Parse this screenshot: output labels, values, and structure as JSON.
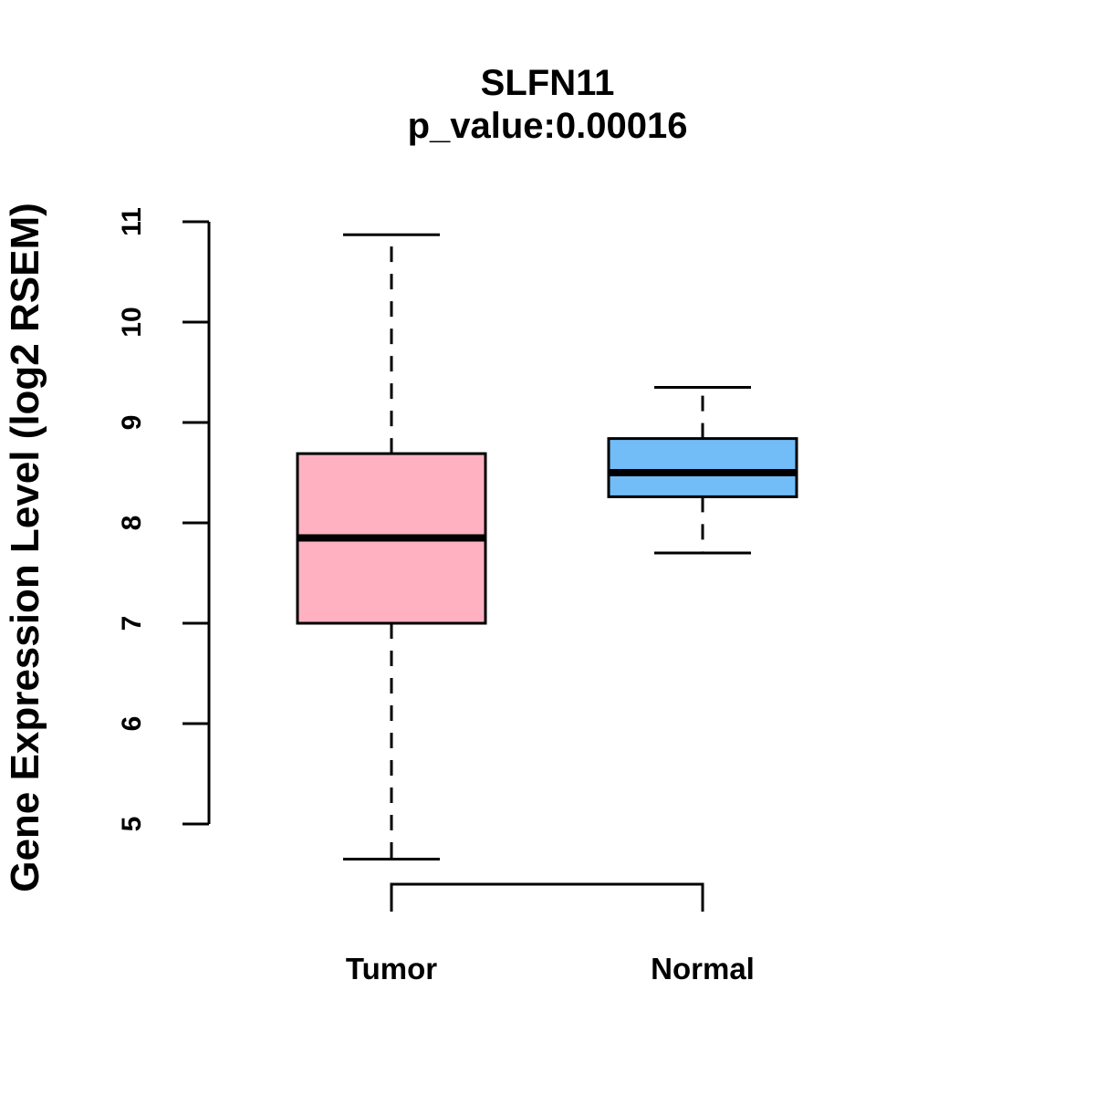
{
  "title": "SLFN11",
  "subtitle": "p_value:0.00016",
  "chart_data": {
    "type": "boxplot",
    "title": "SLFN11",
    "subtitle": "p_value:0.00016",
    "p_value": 0.00016,
    "ylabel": "Gene Expression Level (log2 RSEM)",
    "xlabel": "",
    "ylim": [
      5,
      11
    ],
    "yticks": [
      5,
      6,
      7,
      8,
      9,
      10,
      11
    ],
    "grid": false,
    "legend": "none",
    "categories": [
      "Tumor",
      "Normal"
    ],
    "series": [
      {
        "name": "Tumor",
        "color": "#FFB1C1",
        "lower_whisker": 4.65,
        "q1": 7.0,
        "median": 7.85,
        "q3": 8.69,
        "upper_whisker": 10.87
      },
      {
        "name": "Normal",
        "color": "#72BDF7",
        "lower_whisker": 7.7,
        "q1": 8.26,
        "median": 8.5,
        "q3": 8.84,
        "upper_whisker": 9.35
      }
    ],
    "comparison_bracket": {
      "between": [
        "Tumor",
        "Normal"
      ]
    },
    "box_border_color": "#000000",
    "median_color": "#000000",
    "axis_color": "#000000",
    "background_color": "#ffffff"
  }
}
